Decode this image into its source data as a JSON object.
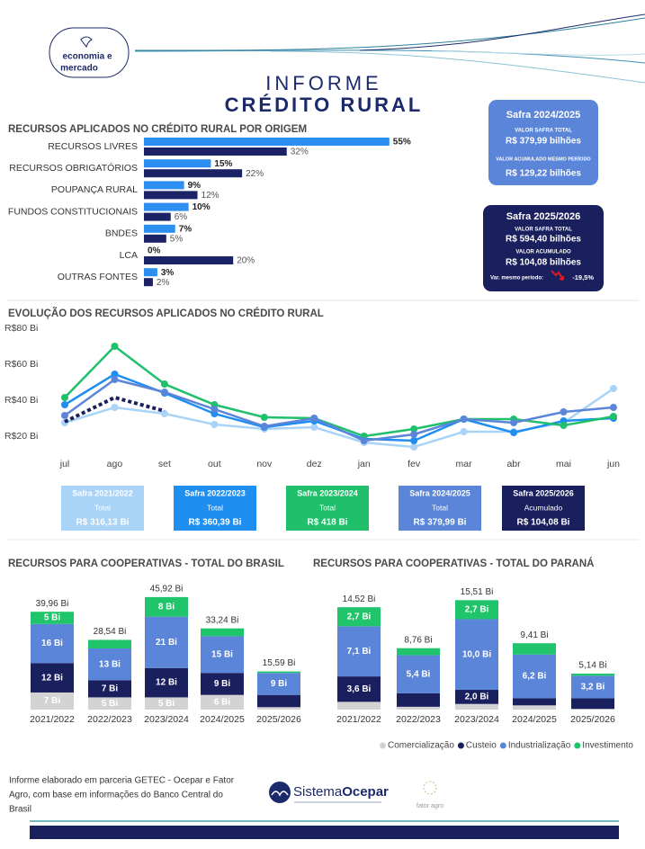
{
  "header": {
    "brand_line1": "economia e",
    "brand_line2": "mercado",
    "title_line1": "INFORME",
    "title_line2": "CRÉDITO RURAL"
  },
  "safra_2024": {
    "title": "Safra 2024/2025",
    "label1": "VALOR SAFRA TOTAL",
    "value1": "R$ 379,99 bilhões",
    "label2": "VALOR ACUMULADO MESMO PERÍODO",
    "value2": "R$ 129,22 bilhões"
  },
  "safra_2025": {
    "title": "Safra 2025/2026",
    "label1": "VALOR SAFRA TOTAL",
    "value1": "R$ 594,40 bilhões",
    "label2": "VALOR ACUMULADO",
    "value2": "R$ 104,08 bilhões",
    "variation_label": "Var. mesmo período:",
    "variation": "-19,5%"
  },
  "chart_data": [
    {
      "type": "hbar",
      "title": "RECURSOS APLICADOS NO CRÉDITO RURAL POR ORIGEM",
      "categories": [
        "RECURSOS LIVRES",
        "RECURSOS OBRIGATÓRIOS",
        "POUPANÇA RURAL",
        "FUNDOS CONSTITUCIONAIS",
        "BNDES",
        "LCA",
        "OUTRAS FONTES"
      ],
      "series": [
        {
          "color": "#2b8ef0",
          "values": [
            55,
            15,
            9,
            10,
            7,
            0,
            3
          ],
          "value_labels": [
            "55%",
            "15%",
            "9%",
            "10%",
            "7%",
            "0%",
            "3%"
          ]
        },
        {
          "color": "#1b2266",
          "values": [
            32,
            22,
            12,
            6,
            5,
            20,
            2
          ],
          "value_labels": [
            "32%",
            "22%",
            "12%",
            "6%",
            "5%",
            "20%",
            "2%"
          ]
        }
      ]
    },
    {
      "type": "line",
      "title": "EVOLUÇÃO DOS RECURSOS APLICADOS NO CRÉDITO RURAL",
      "categories": [
        "jul",
        "ago",
        "set",
        "out",
        "nov",
        "dez",
        "jan",
        "fev",
        "mar",
        "abr",
        "mai",
        "jun"
      ],
      "ylim": [
        12,
        80
      ],
      "yticks": [
        {
          "value": 20,
          "label": "R$20 Bi"
        },
        {
          "value": 40,
          "label": "R$40 Bi"
        },
        {
          "value": 60,
          "label": "R$60 Bi"
        },
        {
          "value": 80,
          "label": "R$80 Bi"
        }
      ],
      "grid": false,
      "series": [
        {
          "name": "Safra 2021/2022",
          "legend_sub": "Total",
          "legend_value": "R$ 316,13 Bi",
          "color": "#a9d3f7",
          "dashed": false,
          "values": [
            27.5,
            36,
            32.5,
            26.5,
            24,
            25,
            16.5,
            14,
            22.5,
            22.5,
            27.5,
            46.5
          ]
        },
        {
          "name": "Safra 2022/2023",
          "legend_sub": "Total",
          "legend_value": "R$ 360,39 Bi",
          "color": "#1f8ef1",
          "dashed": false,
          "values": [
            37.5,
            54.5,
            44,
            32.5,
            25,
            28.5,
            18.5,
            17.5,
            29.5,
            22,
            28.5,
            30
          ]
        },
        {
          "name": "Safra 2023/2024",
          "legend_sub": "Total",
          "legend_value": "R$ 418 Bi",
          "color": "#20bf6b",
          "dashed": false,
          "values": [
            41.5,
            70,
            49,
            37.5,
            30.5,
            30,
            20,
            24,
            29.5,
            29.5,
            26,
            31
          ]
        },
        {
          "name": "Safra 2024/2025",
          "legend_sub": "Total",
          "legend_value": "R$ 379,99 Bi",
          "color": "#5b85d8",
          "dashed": false,
          "values": [
            31.5,
            51.5,
            44.5,
            35,
            25.5,
            30,
            17.5,
            21,
            29.5,
            27.5,
            33.5,
            36
          ]
        },
        {
          "name": "Safra 2025/2026",
          "legend_sub": "Acumulado",
          "legend_value": "R$ 104,08 Bi",
          "color": "#1a1f5e",
          "dashed": true,
          "values": [
            28,
            41.5,
            34,
            null,
            null,
            null,
            null,
            null,
            null,
            null,
            null,
            null
          ]
        }
      ]
    },
    {
      "type": "stacked_bar",
      "title": "RECURSOS PARA COOPERATIVAS - TOTAL DO BRASIL",
      "categories": [
        "2021/2022",
        "2022/2023",
        "2023/2024",
        "2024/2025",
        "2025/2026"
      ],
      "totals": [
        39.96,
        28.54,
        45.92,
        33.24,
        15.59
      ],
      "total_labels": [
        "39,96 Bi",
        "28,54 Bi",
        "45,92 Bi",
        "33,24 Bi",
        "15,59 Bi"
      ],
      "series": [
        {
          "color": "#d3d3d3",
          "values": [
            7,
            5,
            5,
            6,
            1
          ],
          "value_labels": [
            "7 Bi",
            "5 Bi",
            "5 Bi",
            "6 Bi",
            null
          ]
        },
        {
          "color": "#1a1f5e",
          "values": [
            12,
            7,
            12,
            9,
            5
          ],
          "value_labels": [
            "12 Bi",
            "7 Bi",
            "12 Bi",
            "9 Bi",
            null
          ]
        },
        {
          "color": "#5b85d8",
          "values": [
            16,
            13,
            21,
            15,
            9
          ],
          "value_labels": [
            "16 Bi",
            "13 Bi",
            "21 Bi",
            "15 Bi",
            "9 Bi"
          ]
        },
        {
          "color": "#20c46a",
          "values": [
            5,
            3.5,
            8,
            3.2,
            0.6
          ],
          "value_labels": [
            "5 Bi",
            null,
            "8 Bi",
            null,
            null
          ]
        }
      ]
    },
    {
      "type": "stacked_bar",
      "title": "RECURSOS PARA COOPERATIVAS - TOTAL DO PARANÁ",
      "categories": [
        "2021/2022",
        "2022/2023",
        "2023/2024",
        "2024/2025",
        "2025/2026"
      ],
      "totals": [
        14.52,
        8.76,
        15.51,
        9.41,
        5.14
      ],
      "total_labels": [
        "14,52 Bi",
        "8,76 Bi",
        "15,51 Bi",
        "9,41 Bi",
        "5,14 Bi"
      ],
      "legend": "bottom-right",
      "series": [
        {
          "name": "Comercialização",
          "color": "#d3d3d3",
          "values": [
            1.1,
            0.4,
            0.8,
            0.6,
            0.1
          ],
          "value_labels": [
            null,
            null,
            null,
            null,
            null
          ]
        },
        {
          "name": "Custeio",
          "color": "#1a1f5e",
          "values": [
            3.6,
            1.9,
            2.0,
            1.0,
            1.5
          ],
          "value_labels": [
            "3,6 Bi",
            null,
            "2,0 Bi",
            null,
            null
          ]
        },
        {
          "name": "Industrialização",
          "color": "#5b85d8",
          "values": [
            7.1,
            5.4,
            10.0,
            6.2,
            3.2
          ],
          "value_labels": [
            "7,1 Bi",
            "5,4 Bi",
            "10,0 Bi",
            "6,2 Bi",
            "3,2 Bi"
          ]
        },
        {
          "name": "Investimento",
          "color": "#20c46a",
          "values": [
            2.7,
            1.0,
            2.7,
            1.6,
            0.3
          ],
          "value_labels": [
            "2,7 Bi",
            null,
            "2,7 Bi",
            null,
            null
          ]
        }
      ]
    }
  ],
  "footer": {
    "note_line1": "Informe elaborado em parceria GETEC - Ocepar e Fator",
    "note_line2": "Agro, com base em informações do Banco Central do",
    "note_line3": "Brasil",
    "logo_part1": "Sistema",
    "logo_part2": "Ocepar",
    "partner": "fator agro"
  }
}
